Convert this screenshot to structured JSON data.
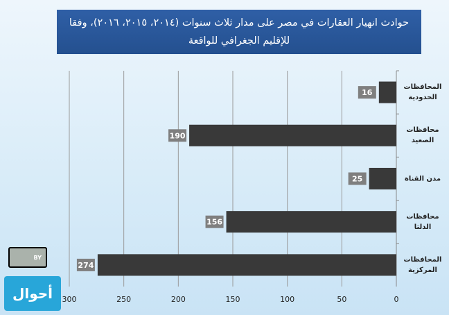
{
  "chart_data": {
    "type": "barh",
    "title": "حوادث انهيار العقارات في مصر على مدار ثلاث سنوات (٢٠١٤، ٢٠١٥، ٢٠١٦)، وفقا للإقليم الجغرافي للواقعة",
    "categories": [
      "المحافظات الحدودية",
      "محافظات الصعيد",
      "مدن القناة",
      "محافظات الدلتا",
      "المحافظات المركزية"
    ],
    "values": [
      16,
      190,
      25,
      156,
      274
    ],
    "color": "#393939",
    "label_color": "#7f7f7f",
    "xlim": [
      0,
      300
    ],
    "xticks": [
      0,
      50,
      100,
      150,
      200,
      250,
      300
    ],
    "x_reversed": true,
    "grid": true
  },
  "logo": {
    "text": "أحوال",
    "license": "BY"
  }
}
